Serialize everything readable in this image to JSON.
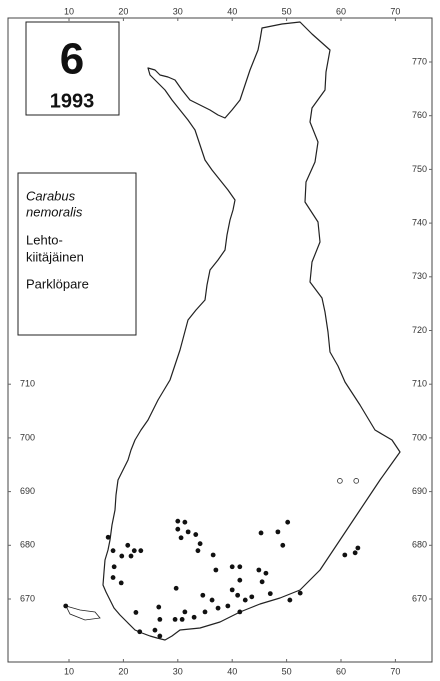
{
  "number": "6",
  "year": "1993",
  "species": {
    "latin": [
      "Carabus",
      "nemoralis"
    ],
    "finnish": [
      "Lehto-",
      "kiitäjäinen"
    ],
    "swedish": "Parklöpare"
  },
  "xticks": [
    10,
    20,
    30,
    40,
    50,
    60,
    70
  ],
  "yticks_right": [
    770,
    760,
    750,
    740,
    730,
    720,
    710,
    700,
    690,
    680,
    670
  ],
  "yticks_left": [
    710,
    700,
    690,
    680,
    670
  ],
  "records": [
    [
      17.2,
      681.5
    ],
    [
      18.1,
      679
    ],
    [
      19.7,
      678
    ],
    [
      18.3,
      676
    ],
    [
      18.1,
      674
    ],
    [
      19.6,
      673
    ],
    [
      20.8,
      680
    ],
    [
      22,
      679
    ],
    [
      21.4,
      678
    ],
    [
      23.2,
      679
    ],
    [
      22.3,
      667.5
    ],
    [
      26.5,
      668.5
    ],
    [
      30,
      684.5
    ],
    [
      31.3,
      684.3
    ],
    [
      30,
      683
    ],
    [
      31.9,
      682.5
    ],
    [
      30.6,
      681.4
    ],
    [
      33.3,
      682
    ],
    [
      34.1,
      680.3
    ],
    [
      33.7,
      679
    ],
    [
      36.5,
      678.2
    ],
    [
      37,
      675.4
    ],
    [
      40,
      676
    ],
    [
      41.4,
      676
    ],
    [
      41.4,
      673.5
    ],
    [
      40,
      671.7
    ],
    [
      41,
      670.7
    ],
    [
      39.2,
      668.7
    ],
    [
      37.4,
      668.3
    ],
    [
      45.3,
      682.3
    ],
    [
      48.4,
      682.5
    ],
    [
      50.2,
      684.3
    ],
    [
      49.3,
      680
    ],
    [
      44.9,
      675.4
    ],
    [
      46.2,
      674.8
    ],
    [
      45.5,
      673.2
    ],
    [
      47,
      671
    ],
    [
      43.6,
      670.4
    ],
    [
      42.4,
      669.8
    ],
    [
      41.4,
      667.6
    ],
    [
      52.5,
      671.1
    ],
    [
      50.6,
      669.8
    ],
    [
      62.6,
      678.6
    ],
    [
      63.1,
      679.5
    ],
    [
      60.7,
      678.2
    ],
    [
      34.6,
      670.7
    ],
    [
      36.3,
      669.8
    ],
    [
      35,
      667.6
    ],
    [
      33,
      666.6
    ],
    [
      29.7,
      672
    ],
    [
      31.3,
      667.6
    ],
    [
      29.5,
      666.2
    ],
    [
      30.8,
      666.2
    ],
    [
      26.7,
      666.2
    ],
    [
      26.7,
      663.1
    ],
    [
      25.8,
      664.2
    ],
    [
      23,
      663.9
    ],
    [
      9.4,
      668.7
    ]
  ],
  "uncertain_records": [
    [
      59.8,
      692
    ],
    [
      62.8,
      692
    ]
  ]
}
